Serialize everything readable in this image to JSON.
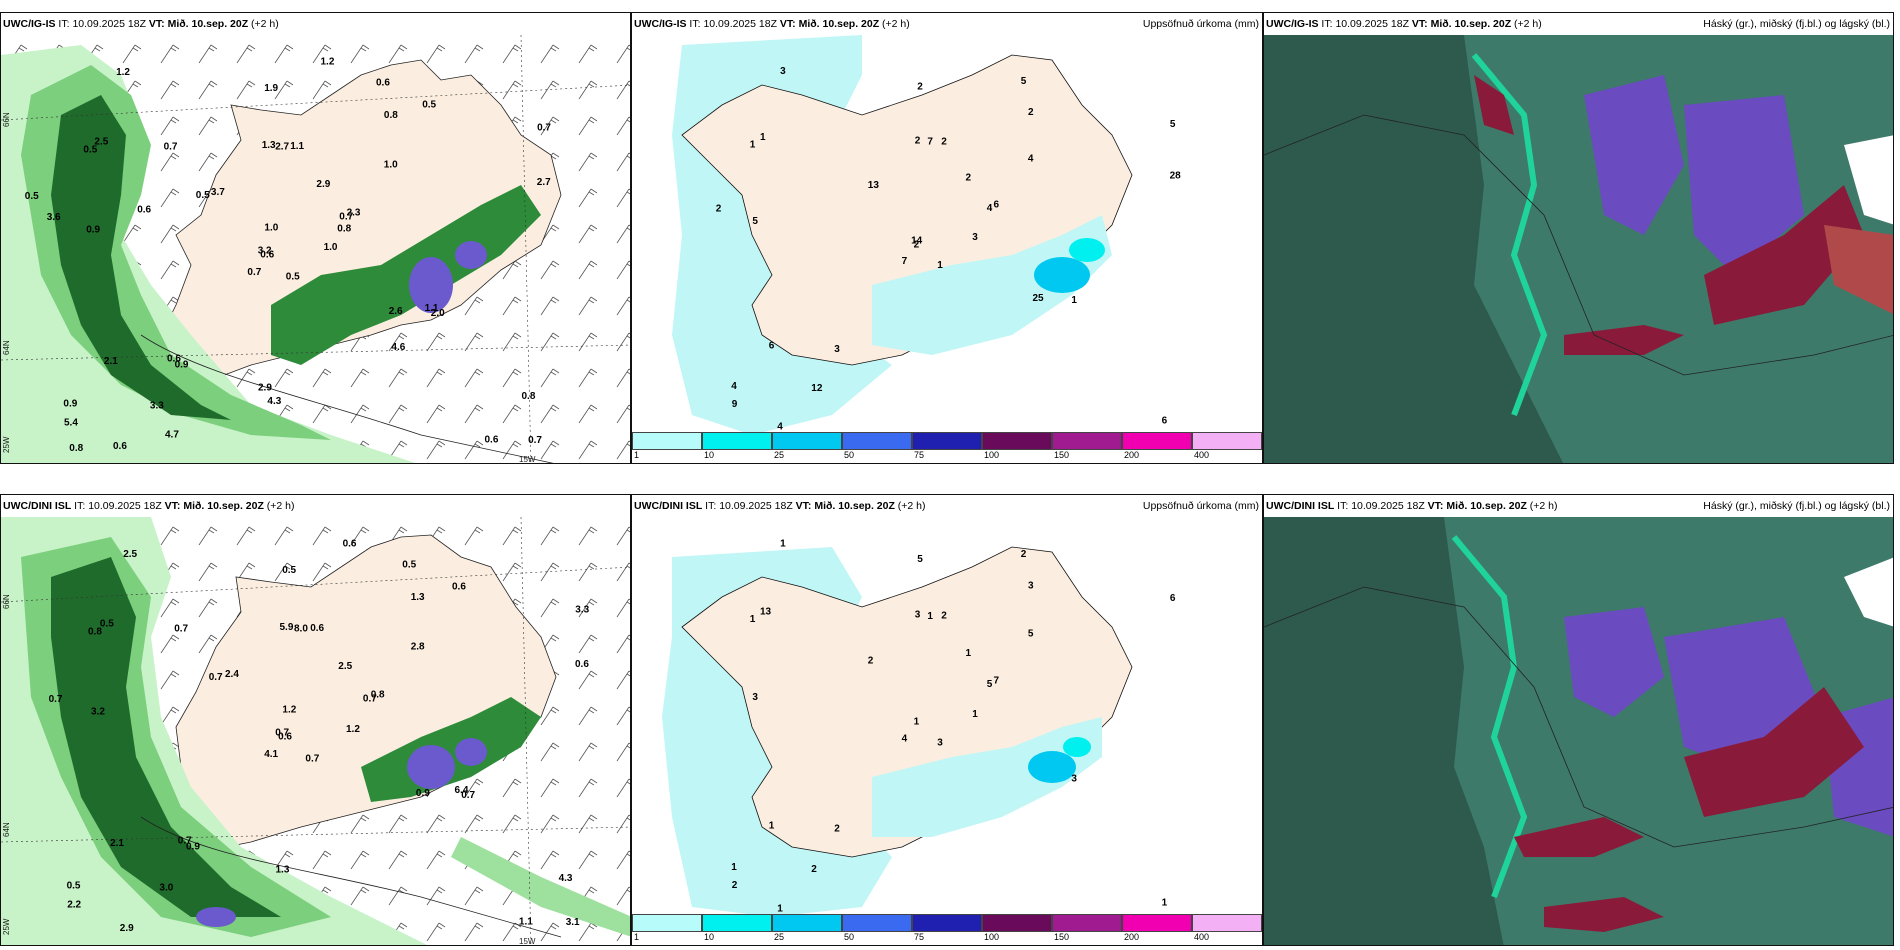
{
  "panels": {
    "top_left": {
      "model": "UWC/IG-IS",
      "it_label": "IT:",
      "it": "10.09.2025 18Z",
      "vt_label": "VT:",
      "vt": "Mið. 10.sep. 20Z",
      "lead": "(+2 h)"
    },
    "top_mid": {
      "model": "UWC/IG-IS",
      "it_label": "IT:",
      "it": "10.09.2025 18Z",
      "vt_label": "VT:",
      "vt": "Mið. 10.sep. 20Z",
      "lead": "(+2 h)",
      "field": "Uppsöfnuð úrkoma (mm)"
    },
    "top_right": {
      "model": "UWC/IG-IS",
      "it_label": "IT:",
      "it": "10.09.2025 18Z",
      "vt_label": "VT:",
      "vt": "Mið. 10.sep. 20Z",
      "lead": "(+2 h)",
      "field": "Háský (gr.), miðský (fj.bl.) og lágský (bl.)"
    },
    "bot_left": {
      "model": "UWC/DINI ISL",
      "it_label": "IT:",
      "it": "10.09.2025 18Z",
      "vt_label": "VT:",
      "vt": "Mið. 10.sep. 20Z",
      "lead": "(+2 h)"
    },
    "bot_mid": {
      "model": "UWC/DINI ISL",
      "it_label": "IT:",
      "it": "10.09.2025 18Z",
      "vt_label": "VT:",
      "vt": "Mið. 10.sep. 20Z",
      "lead": "(+2 h)",
      "field": "Uppsöfnuð úrkoma (mm)"
    },
    "bot_right": {
      "model": "UWC/DINI ISL",
      "it_label": "IT:",
      "it": "10.09.2025 18Z",
      "vt_label": "VT:",
      "vt": "Mið. 10.sep. 20Z",
      "lead": "(+2 h)",
      "field": "Háský (gr.), miðský (fj.bl.) og lágský (bl.)"
    }
  },
  "axes": {
    "lat66": "66N",
    "lat64": "64N",
    "lon25": "25W",
    "lon15": "15W"
  },
  "colorbar": {
    "colors": [
      "#b8fbfb",
      "#00f0f0",
      "#00c8f0",
      "#3a6af0",
      "#2020b0",
      "#6a0a5a",
      "#a01a90",
      "#f000b0",
      "#f4b0f4"
    ],
    "ticks": [
      "1",
      "10",
      "25",
      "50",
      "75",
      "100",
      "150",
      "200",
      "400"
    ]
  },
  "colors": {
    "land": "#fbeee0",
    "rain_light": "#c8f2c8",
    "rain_mid": "#7ccf7c",
    "rain_heavy": "#1f6b2b",
    "rain_vheavy": "#0b3d14",
    "rain_purple": "#6a5acd",
    "cyan_light": "#c0f6f6",
    "cloud_dark": "#2e5a4e",
    "cloud_green": "#1fd39a",
    "cloud_purple": "#6a4bc0",
    "cloud_maroon": "#8a1a3a"
  },
  "labels": {
    "top_left": [
      "0.5",
      "0.5",
      "0.6",
      "0.9",
      "0.7",
      "0.9",
      "0.6",
      "1.1",
      "0.8",
      "1.0",
      "1.2",
      "0.7",
      "0.9",
      "0.7",
      "0.7",
      "1.0",
      "0.6",
      "1.3",
      "2.9",
      "2.1",
      "3.7",
      "5.4",
      "3.3",
      "2.7",
      "2.3",
      "2.0",
      "2.5",
      "1.9",
      "3.6",
      "2.6",
      "2.7",
      "3.2",
      "2.9",
      "1.0",
      "0.7",
      "0.5",
      "0.6",
      "0.6",
      "0.8",
      "1.1",
      "1.2",
      "0.5",
      "0.6",
      "4.6",
      "4.7",
      "0.5",
      "0.8",
      "0.8",
      "4.3"
    ],
    "top_mid": [
      "1",
      "1",
      "2",
      "4",
      "4",
      "3",
      "5",
      "2",
      "2",
      "3",
      "3",
      "6",
      "5",
      "5",
      "7",
      "4",
      "4",
      "2",
      "2",
      "6",
      "13",
      "9",
      "12",
      "7",
      "6",
      "1",
      "1",
      "2",
      "2",
      "25",
      "28",
      "14"
    ],
    "bot_left": [
      "0.7",
      "0.8",
      "0.6",
      "0.5",
      "0.7",
      "0.9",
      "0.5",
      "0.6",
      "1.3",
      "1.2",
      "2.5",
      "3.1",
      "3.2",
      "3.3",
      "4.1",
      "2.8",
      "2.9",
      "5.9",
      "2.5",
      "2.1",
      "2.4",
      "2.2",
      "3.0",
      "8.0",
      "0.8",
      "0.7",
      "0.5",
      "0.5",
      "0.7",
      "0.9",
      "0.6",
      "0.7",
      "1.3",
      "1.2",
      "0.7",
      "0.6",
      "0.7",
      "1.1",
      "4.3",
      "6.4",
      "0.6",
      "0.7"
    ],
    "bot_mid": [
      "3",
      "1",
      "1",
      "1",
      "5",
      "2",
      "2",
      "2",
      "3",
      "1",
      "1",
      "1",
      "3",
      "6",
      "4",
      "5",
      "1",
      "3",
      "1",
      "1",
      "2",
      "2",
      "2",
      "1",
      "7",
      "3",
      "13",
      "5"
    ]
  }
}
